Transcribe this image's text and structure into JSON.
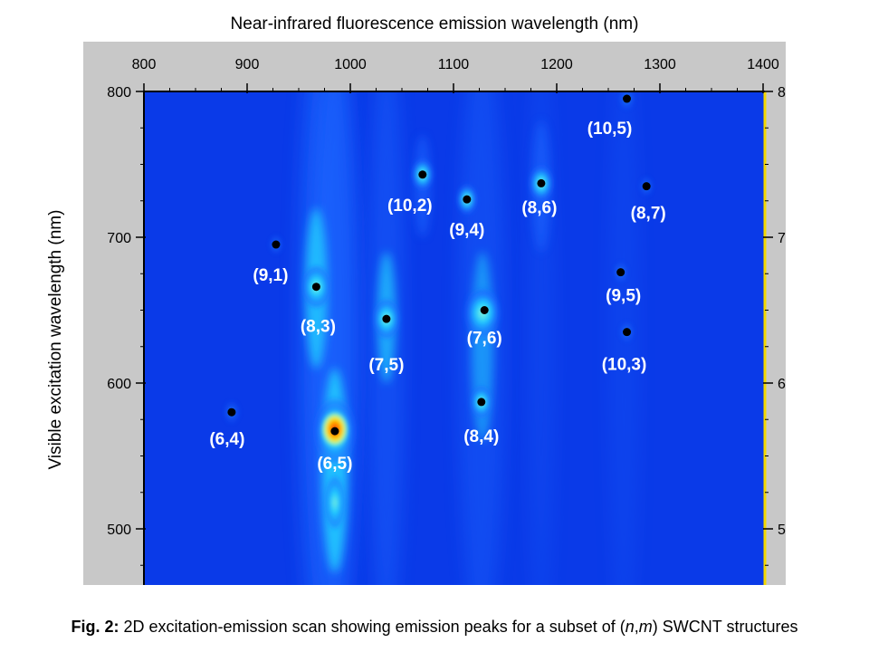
{
  "chart_data": {
    "type": "heatmap",
    "title": "Near-infrared fluorescence emission wavelength (nm)",
    "xlabel": "Near-infrared fluorescence emission wavelength (nm)",
    "ylabel": "Visible excitation  wavelength (nm)",
    "xlim": [
      800,
      1400
    ],
    "ylim": [
      460,
      800
    ],
    "x_ticks": [
      800,
      900,
      1000,
      1100,
      1200,
      1300,
      1400
    ],
    "y_ticks": [
      500,
      600,
      700,
      800
    ],
    "colors": {
      "background": "#0a3ae8",
      "low": "#1a66ff",
      "mid": "#21d0ff",
      "high": "#8df7d8",
      "hot": "#ffea00",
      "peak": "#ff2a00",
      "dot": "#000000",
      "frame": "#c8c8c8"
    },
    "peaks": [
      {
        "label": "(6,4)",
        "em": 885,
        "ex": 580,
        "intensity": 0.15
      },
      {
        "label": "(9,1)",
        "em": 928,
        "ex": 695,
        "intensity": 0.1
      },
      {
        "label": "(8,3)",
        "em": 967,
        "ex": 666,
        "intensity": 0.6
      },
      {
        "label": "(6,5)",
        "em": 985,
        "ex": 567,
        "intensity": 1.0
      },
      {
        "label": "(7,5)",
        "em": 1035,
        "ex": 644,
        "intensity": 0.55
      },
      {
        "label": "(10,2)",
        "em": 1070,
        "ex": 743,
        "intensity": 0.35
      },
      {
        "label": "(9,4)",
        "em": 1113,
        "ex": 726,
        "intensity": 0.3
      },
      {
        "label": "(7,6)",
        "em": 1130,
        "ex": 650,
        "intensity": 0.5
      },
      {
        "label": "(8,4)",
        "em": 1127,
        "ex": 587,
        "intensity": 0.35
      },
      {
        "label": "(8,6)",
        "em": 1185,
        "ex": 737,
        "intensity": 0.45
      },
      {
        "label": "(10,5)",
        "em": 1268,
        "ex": 795,
        "intensity": 0.15
      },
      {
        "label": "(8,7)",
        "em": 1287,
        "ex": 735,
        "intensity": 0.1
      },
      {
        "label": "(9,5)",
        "em": 1262,
        "ex": 676,
        "intensity": 0.12
      },
      {
        "label": "(10,3)",
        "em": 1268,
        "ex": 635,
        "intensity": 0.12
      }
    ]
  },
  "caption": {
    "bold": "Fig. 2:",
    "text_before": " 2D excitation-emission  scan showing emission peaks for a subset of (",
    "n": "n",
    "comma": ",",
    "m": "m",
    "text_after": ") SWCNT structures"
  }
}
